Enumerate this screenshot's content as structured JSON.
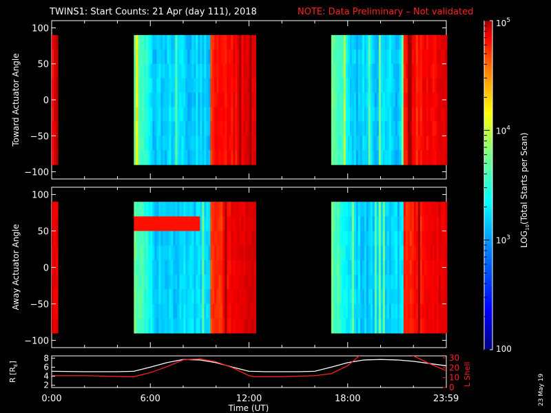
{
  "header": {
    "title": "TWINS1: Start Counts: 21 Apr (day 111), 2018",
    "note": "NOTE: Data Preliminary – Not validated",
    "note_color": "#ff2020"
  },
  "side_date": "23 May 19",
  "chart_data": [
    {
      "type": "heatmap",
      "panel": "toward",
      "ylabel": "Toward Actuator Angle",
      "yticks": [
        "100",
        "50",
        "0",
        "−50",
        "−100"
      ],
      "ylim": [
        -110,
        110
      ],
      "xlim": [
        0,
        24
      ],
      "data_segments_hours": [
        [
          0.0,
          0.35
        ],
        [
          5.0,
          12.3
        ],
        [
          17.0,
          24.0
        ]
      ],
      "log_level_by_segment": [
        "high",
        "low-to-high",
        "low-to-high"
      ]
    },
    {
      "type": "heatmap",
      "panel": "away",
      "ylabel": "Away Actuator Angle",
      "yticks": [
        "100",
        "50",
        "0",
        "−50",
        "−100"
      ],
      "ylim": [
        -110,
        110
      ],
      "xlim": [
        0,
        24
      ],
      "data_segments_hours": [
        [
          0.0,
          0.35
        ],
        [
          5.0,
          12.3
        ],
        [
          17.0,
          24.0
        ]
      ]
    },
    {
      "type": "line",
      "panel": "orbit",
      "ylabel": "R [R",
      "ylabel_sub": "E",
      "ylabel_end": "]",
      "ylabel_right": "L Shell",
      "yticks_left": [
        "8",
        "6",
        "4",
        "2"
      ],
      "yticks_right": [
        "30",
        "20",
        "10",
        "0"
      ],
      "xlabel": "Time (UT)",
      "xticks": [
        "0:00",
        "6:00",
        "12:00",
        "18:00",
        "23:59"
      ],
      "xlim": [
        0,
        24
      ],
      "ylim_left": [
        1.5,
        8.5
      ],
      "ylim_right": [
        0,
        32
      ],
      "series": [
        {
          "color": "#ffffff",
          "x": [
            0,
            2,
            4,
            5,
            6,
            7,
            8,
            9,
            10,
            11,
            12,
            13,
            15,
            16,
            17,
            18,
            19,
            20,
            21,
            22,
            23,
            24
          ],
          "y": [
            5.1,
            5.0,
            5.0,
            5.1,
            6.0,
            7.0,
            7.7,
            7.6,
            7.0,
            6.0,
            5.1,
            5.0,
            5.0,
            5.1,
            6.0,
            7.0,
            7.6,
            7.7,
            7.6,
            7.3,
            6.8,
            6.3
          ]
        },
        {
          "color": "#ff2020",
          "axis": "right",
          "x": [
            0,
            2,
            4.5,
            5,
            6,
            7,
            8,
            9,
            10,
            11,
            12,
            12.3,
            14,
            16,
            17,
            18,
            18.7,
            19,
            21.7,
            22,
            23,
            24
          ],
          "y": [
            12,
            12,
            11,
            11,
            15,
            21,
            28,
            29,
            26,
            20,
            12,
            11,
            11,
            12,
            14,
            22,
            32,
            34,
            34,
            32,
            24,
            17
          ]
        }
      ]
    }
  ],
  "colorbar": {
    "label": "LOG",
    "label_sub": "10",
    "label_end": "(Total Starts per Scan)",
    "ticks": [
      {
        "base": "10",
        "exp": "5",
        "value": 100000
      },
      {
        "base": "10",
        "exp": "4",
        "value": 10000
      },
      {
        "base": "10",
        "exp": "3",
        "value": 1000
      },
      {
        "base": "",
        "exp": "",
        "value": 100,
        "text": "100"
      }
    ],
    "range": [
      100,
      100000
    ],
    "colors": [
      "#00007f",
      "#0000ff",
      "#007fff",
      "#00ffff",
      "#7fff7f",
      "#ffff00",
      "#ff7f00",
      "#ff0000",
      "#a00000"
    ]
  }
}
